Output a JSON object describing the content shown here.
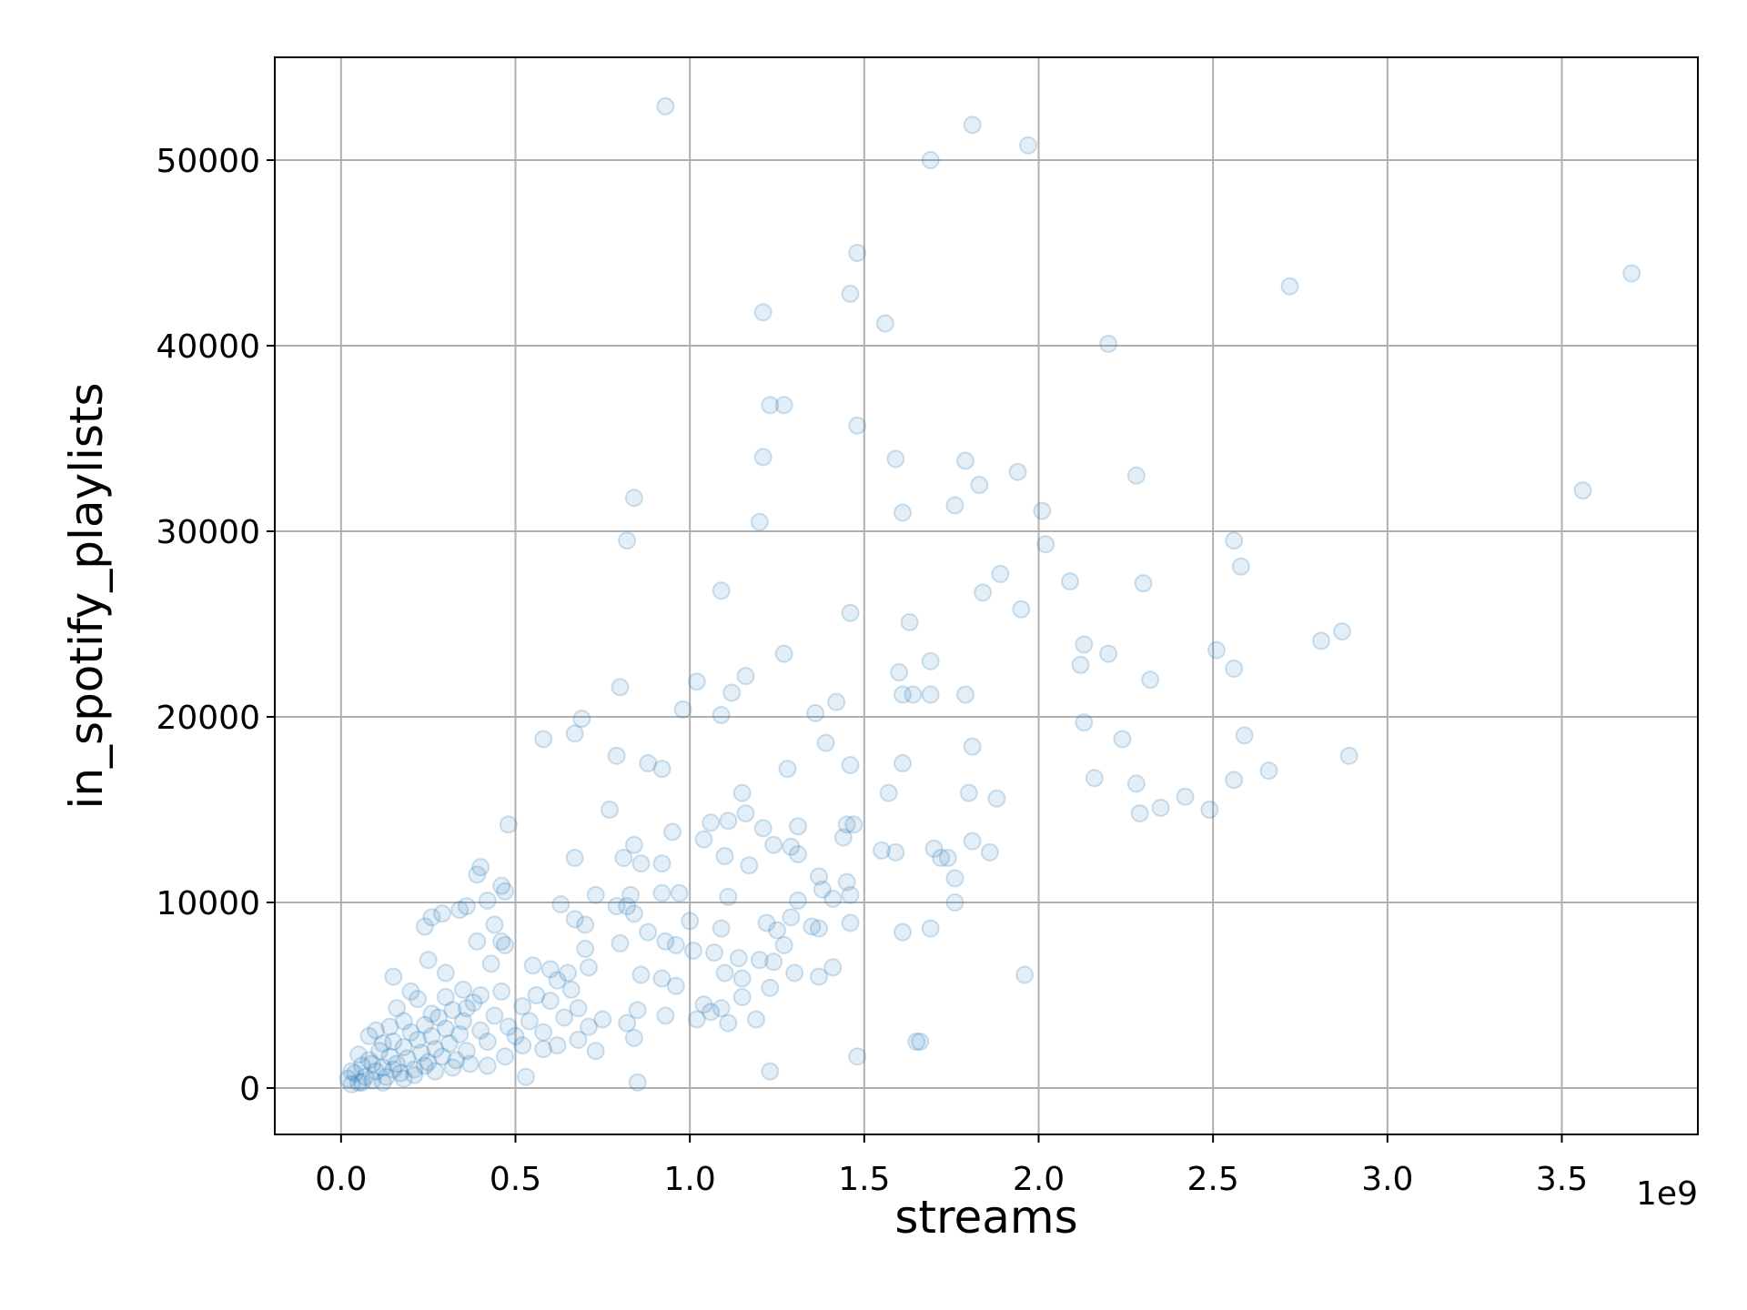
{
  "chart_data": {
    "type": "scatter",
    "xlabel": "streams",
    "ylabel": "in_spotify_playlists",
    "x_offset_label": "1e9",
    "color": "#1f77b4",
    "grid": true,
    "xlim": [
      -0.19,
      3.89
    ],
    "ylim": [
      -2500,
      55540
    ],
    "xticks": [
      {
        "value": 0,
        "label": "0.0"
      },
      0.5,
      {
        "value": 1,
        "label": "1.0"
      },
      1.5,
      {
        "value": 2,
        "label": "2.0"
      },
      2.5,
      {
        "value": 3,
        "label": "3.0"
      },
      3.5
    ],
    "yticks": [
      0,
      10000,
      20000,
      30000,
      40000,
      50000
    ],
    "x": [
      0.93,
      1.81,
      1.97,
      1.69,
      1.48,
      1.46,
      1.21,
      1.56,
      2.72,
      3.7,
      2.2,
      1.23,
      1.27,
      1.48,
      1.21,
      1.59,
      1.79,
      1.94,
      1.83,
      2.28,
      3.56,
      0.84,
      1.76,
      1.61,
      2.01,
      1.2,
      0.82,
      2.02,
      2.56,
      2.58,
      1.89,
      2.09,
      2.3,
      1.09,
      1.84,
      1.95,
      1.46,
      1.63,
      2.87,
      2.81,
      2.13,
      2.51,
      1.27,
      2.2,
      1.69,
      2.12,
      2.56,
      1.16,
      2.32,
      1.02,
      0.8,
      1.12,
      1.6,
      1.61,
      1.64,
      1.69,
      1.79,
      1.42,
      1.36,
      0.98,
      1.09,
      0.69,
      0.67,
      2.13,
      2.59,
      2.24,
      1.39,
      1.81,
      0.79,
      0.58,
      0.88,
      0.92,
      1.28,
      1.61,
      1.46,
      2.16,
      2.56,
      2.66,
      2.89,
      2.28,
      1.15,
      1.57,
      1.8,
      1.88,
      2.42,
      2.35,
      2.29,
      2.49,
      0.77,
      1.06,
      1.11,
      1.16,
      1.47,
      1.45,
      0.48,
      1.21,
      1.31,
      0.95,
      1.04,
      1.44,
      0.84,
      1.24,
      1.29,
      1.31,
      1.55,
      1.59,
      1.7,
      1.72,
      1.74,
      1.86,
      1.81,
      0.67,
      0.81,
      0.86,
      0.92,
      1.1,
      1.17,
      0.4,
      0.39,
      1.37,
      1.45,
      1.76,
      1.38,
      1.46,
      1.41,
      1.76,
      1.11,
      1.31,
      0.46,
      0.47,
      0.73,
      0.83,
      0.92,
      0.97,
      0.63,
      0.79,
      0.82,
      0.26,
      0.29,
      0.24,
      0.36,
      0.34,
      0.42,
      0.67,
      0.7,
      0.84,
      1.0,
      1.22,
      1.25,
      1.29,
      1.35,
      1.37,
      1.46,
      1.61,
      1.69,
      1.09,
      0.88,
      0.93,
      0.96,
      0.44,
      0.46,
      0.39,
      0.7,
      0.8,
      1.01,
      1.07,
      1.14,
      1.2,
      1.24,
      1.27,
      1.41,
      1.3,
      1.37,
      1.96,
      0.55,
      0.6,
      0.65,
      0.71,
      0.86,
      0.92,
      1.1,
      1.15,
      1.23,
      0.96,
      1.04,
      1.06,
      1.09,
      1.15,
      1.11,
      1.19,
      1.02,
      0.93,
      0.85,
      0.82,
      0.84,
      0.75,
      0.71,
      0.68,
      0.73,
      0.62,
      0.58,
      0.53,
      0.85,
      1.23,
      1.48,
      1.65,
      1.66,
      0.02,
      0.03,
      0.04,
      0.05,
      0.06,
      0.07,
      0.08,
      0.09,
      0.1,
      0.11,
      0.12,
      0.13,
      0.14,
      0.15,
      0.16,
      0.17,
      0.18,
      0.19,
      0.2,
      0.21,
      0.22,
      0.23,
      0.24,
      0.25,
      0.26,
      0.27,
      0.28,
      0.29,
      0.3,
      0.31,
      0.32,
      0.33,
      0.34,
      0.35,
      0.36,
      0.38,
      0.4,
      0.42,
      0.44,
      0.46,
      0.48,
      0.5,
      0.52,
      0.54,
      0.56,
      0.58,
      0.6,
      0.62,
      0.64,
      0.66,
      0.68,
      0.15,
      0.2,
      0.25,
      0.3,
      0.35,
      0.43,
      0.47,
      0.05,
      0.08,
      0.1,
      0.12,
      0.14,
      0.16,
      0.18,
      0.22,
      0.26,
      0.3,
      0.03,
      0.06,
      0.09,
      0.12,
      0.15,
      0.18,
      0.21,
      0.24,
      0.27,
      0.32,
      0.37,
      0.42,
      0.47,
      0.52,
      0.4,
      0.36
    ],
    "values": [
      52900,
      51900,
      50800,
      50000,
      45000,
      42800,
      41800,
      41200,
      43200,
      43900,
      40100,
      36800,
      36800,
      35700,
      34000,
      33900,
      33800,
      33200,
      32500,
      33000,
      32200,
      31800,
      31400,
      31000,
      31100,
      30500,
      29500,
      29300,
      29500,
      28100,
      27700,
      27300,
      27200,
      26800,
      26700,
      25800,
      25600,
      25100,
      24600,
      24100,
      23900,
      23600,
      23400,
      23400,
      23000,
      22800,
      22600,
      22200,
      22000,
      21900,
      21600,
      21300,
      22400,
      21200,
      21200,
      21200,
      21200,
      20800,
      20200,
      20400,
      20100,
      19900,
      19100,
      19700,
      19000,
      18800,
      18600,
      18400,
      17900,
      18800,
      17500,
      17200,
      17200,
      17500,
      17400,
      16700,
      16600,
      17100,
      17900,
      16400,
      15900,
      15900,
      15900,
      15600,
      15700,
      15100,
      14800,
      15000,
      15000,
      14300,
      14400,
      14800,
      14200,
      14200,
      14200,
      14000,
      14100,
      13800,
      13400,
      13500,
      13100,
      13100,
      13000,
      12600,
      12800,
      12700,
      12900,
      12400,
      12400,
      12700,
      13300,
      12400,
      12400,
      12100,
      12100,
      12500,
      12000,
      11900,
      11500,
      11400,
      11100,
      11300,
      10700,
      10400,
      10200,
      10000,
      10300,
      10100,
      10900,
      10600,
      10400,
      10400,
      10500,
      10500,
      9900,
      9800,
      9800,
      9200,
      9400,
      8700,
      9800,
      9600,
      10100,
      9100,
      8800,
      9400,
      9000,
      8900,
      8500,
      9200,
      8700,
      8600,
      8900,
      8400,
      8600,
      8600,
      8400,
      7900,
      7700,
      8800,
      7900,
      7900,
      7500,
      7800,
      7400,
      7300,
      7000,
      6900,
      6800,
      7700,
      6500,
      6200,
      6000,
      6100,
      6600,
      6400,
      6200,
      6500,
      6100,
      5900,
      6200,
      5900,
      5400,
      5500,
      4500,
      4100,
      4300,
      4900,
      3500,
      3700,
      3700,
      3900,
      4200,
      3500,
      2700,
      3700,
      3300,
      2600,
      2000,
      2300,
      2100,
      600,
      300,
      900,
      1700,
      2500,
      2500,
      500,
      200,
      800,
      300,
      1200,
      600,
      1500,
      400,
      900,
      2000,
      1100,
      600,
      1700,
      2500,
      1300,
      800,
      2200,
      1600,
      3000,
      1000,
      2600,
      1900,
      3400,
      1400,
      2800,
      2100,
      3800,
      1700,
      3200,
      2400,
      4200,
      1500,
      2900,
      3600,
      2000,
      4600,
      3100,
      2500,
      3900,
      5200,
      3300,
      2800,
      4400,
      3600,
      5000,
      3000,
      4700,
      5800,
      3800,
      5300,
      4300,
      6000,
      5200,
      6900,
      6200,
      5300,
      6700,
      7700,
      1800,
      2800,
      3100,
      2400,
      3300,
      4300,
      3600,
      4800,
      4000,
      4900,
      900,
      300,
      1300,
      300,
      1000,
      500,
      700,
      1200,
      900,
      1100,
      1300,
      1200,
      1700,
      2300,
      5000,
      4300
    ]
  }
}
